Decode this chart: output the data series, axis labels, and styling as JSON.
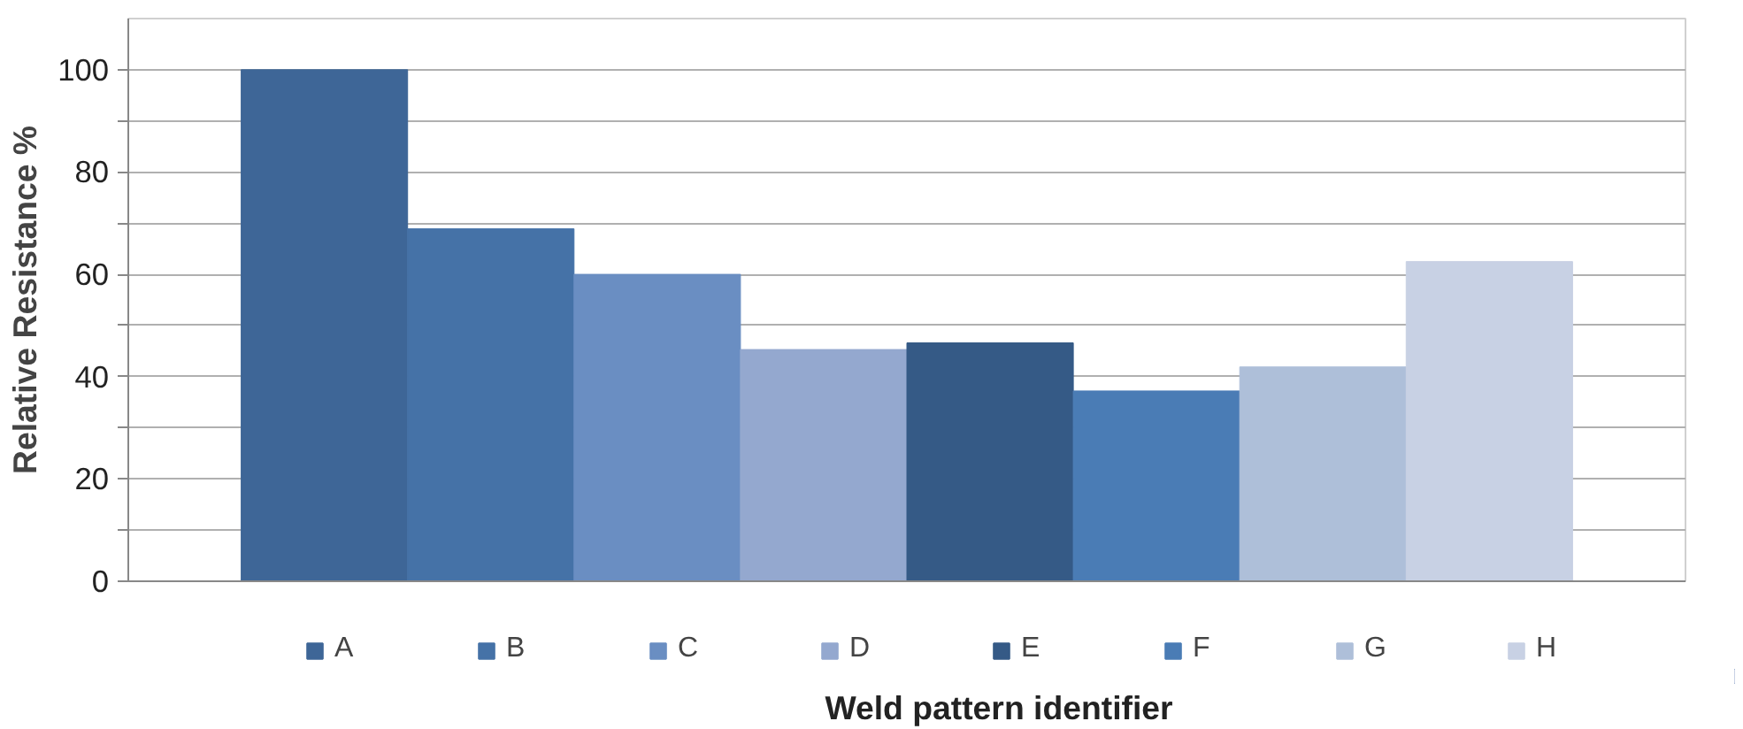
{
  "chart_data": {
    "type": "bar",
    "categories": [
      null
    ],
    "xlabel": "Weld pattern identifier",
    "ylabel": "Relative Resistance %",
    "series": [
      {
        "name": "A",
        "color": "#3e6697",
        "values": [
          100
        ]
      },
      {
        "name": "B",
        "color": "#4572a7",
        "values": [
          68.9
        ]
      },
      {
        "name": "C",
        "color": "#6a8ec2",
        "values": [
          60
        ]
      },
      {
        "name": "D",
        "color": "#94a8cf",
        "values": [
          45.3
        ]
      },
      {
        "name": "E",
        "color": "#355a86",
        "values": [
          46.6
        ]
      },
      {
        "name": "F",
        "color": "#4a7cb5",
        "values": [
          37.2
        ]
      },
      {
        "name": "G",
        "color": "#aebfd9",
        "values": [
          41.9
        ]
      },
      {
        "name": "H",
        "color": "#c8d1e4",
        "values": [
          62.5
        ]
      }
    ],
    "ylim": [
      0,
      110
    ],
    "yticks": [
      0,
      {
        "value": 10,
        "label": null
      },
      20,
      {
        "value": 30,
        "label": null
      },
      40,
      {
        "value": 50,
        "label": null
      },
      60,
      {
        "value": 70,
        "label": null
      },
      80,
      {
        "value": 90,
        "label": null
      },
      100
    ],
    "grid": "y",
    "legend": "bottom"
  }
}
